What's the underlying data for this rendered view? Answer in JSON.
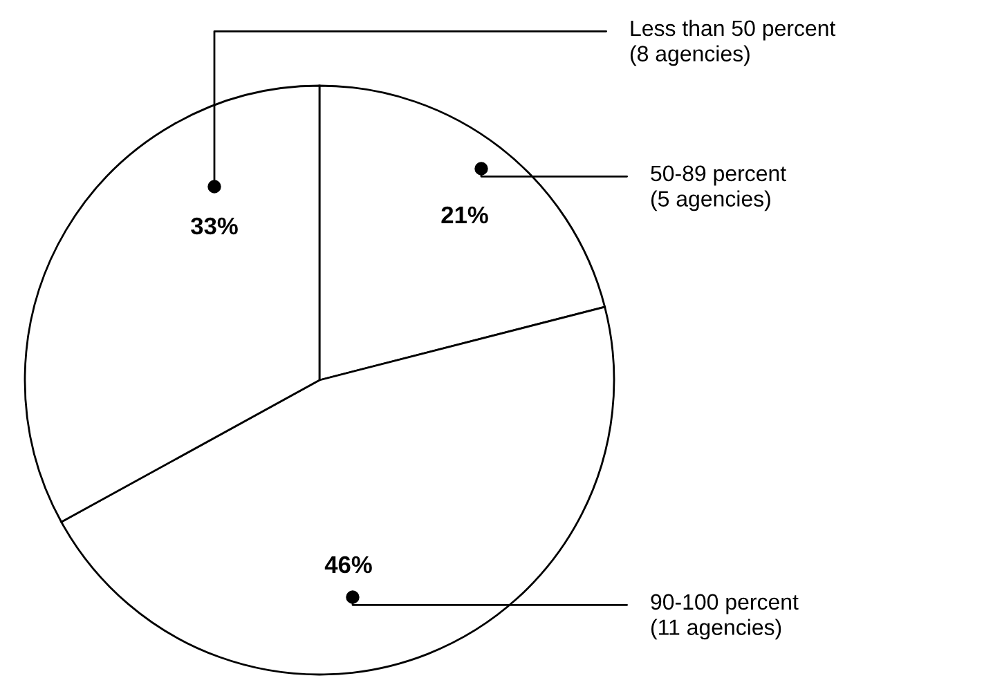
{
  "chart_data": {
    "type": "pie",
    "categories": [
      "50-89 percent\n(5 agencies)",
      "90-100 percent\n(11 agencies)",
      "Less than 50 percent\n(8 agencies)"
    ],
    "values": [
      21,
      46,
      33
    ],
    "value_labels": [
      "21%",
      "46%",
      "33%"
    ],
    "colors": [
      "#ffffff",
      "#ffffff",
      "#ffffff"
    ],
    "legend": false
  }
}
